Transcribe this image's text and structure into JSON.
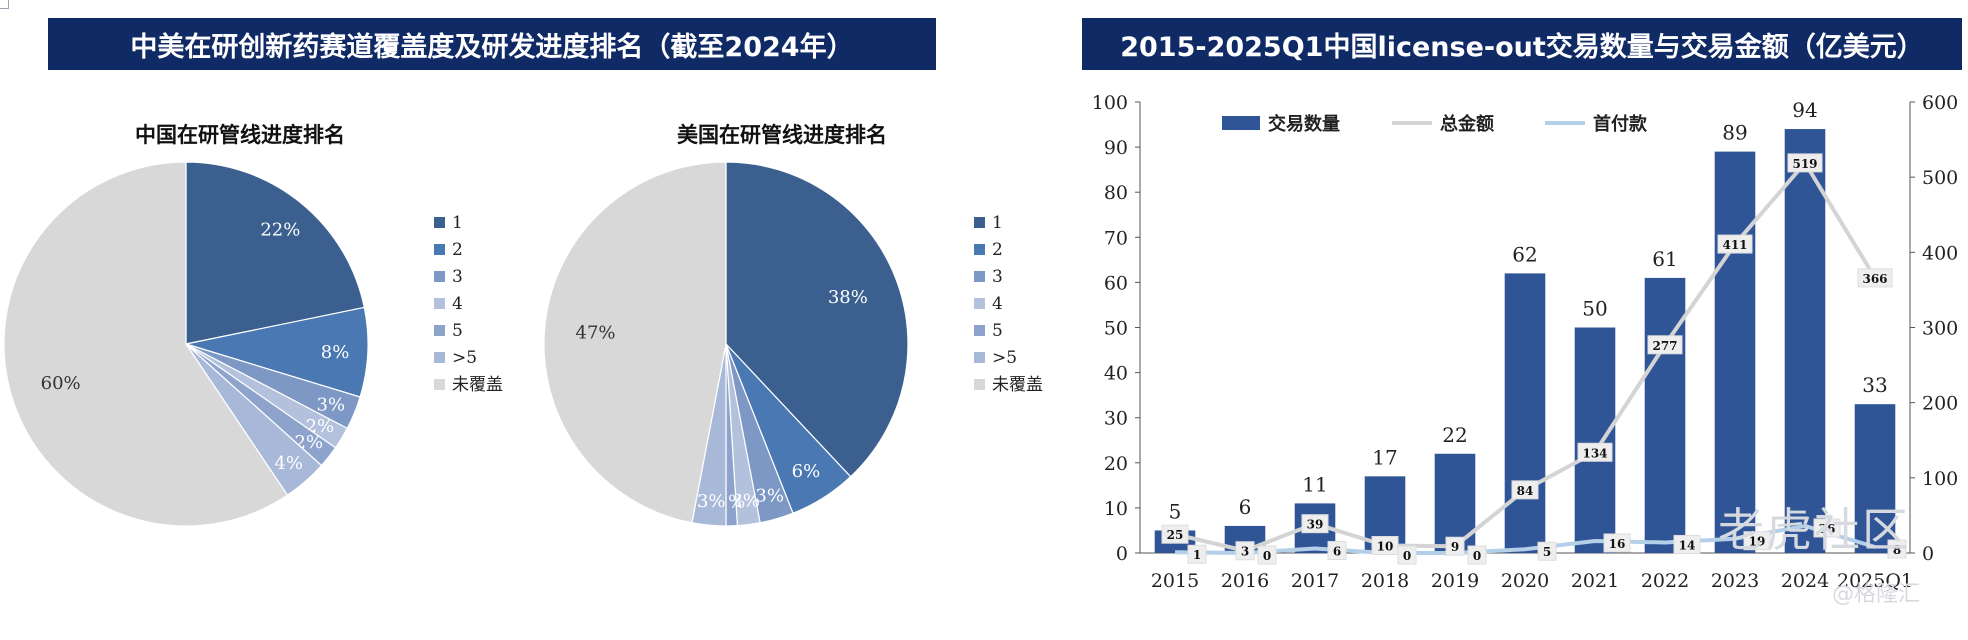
{
  "banners": {
    "left": "中美在研创新药赛道覆盖度及研发进度排名（截至2024年）",
    "right": "2015-2025Q1中国license-out交易数量与交易金额（亿美元）"
  },
  "watermark": {
    "main": "老虎社区",
    "sub": "@格隆汇",
    "logo": "格隆汇"
  },
  "colors": {
    "rank1": "#3b6090",
    "rank2": "#4a78b2",
    "rank3": "#7d98c4",
    "rank4": "#b3c1dc",
    "rank5": "#8ea3cc",
    "rank_gt5": "#a8b8d8",
    "uncovered": "#d8d8d8",
    "bar": "#2f5597",
    "total_line": "#d4d4d4",
    "upfront_line": "#b4cfe8",
    "banner": "#102a66"
  },
  "chart_data": [
    {
      "type": "pie",
      "title": "中国在研管线进度排名",
      "legend": [
        "1",
        "2",
        "3",
        "4",
        "5",
        ">5",
        "未覆盖"
      ],
      "legend_placement": "right",
      "values": [
        22,
        8,
        3,
        2,
        2,
        4,
        60
      ],
      "data_labels": [
        "22%",
        "8%",
        "3%",
        "2%",
        "2%",
        "4%",
        "60%"
      ]
    },
    {
      "type": "pie",
      "title": "美国在研管线进度排名",
      "legend": [
        "1",
        "2",
        "3",
        "4",
        "5",
        ">5",
        "未覆盖"
      ],
      "legend_placement": "right",
      "values": [
        38,
        6,
        3,
        2,
        1,
        3,
        47
      ],
      "data_labels": [
        "38%",
        "6%",
        "3%",
        "2%",
        "1%",
        "3%",
        "47%"
      ]
    },
    {
      "type": "bar",
      "categories": [
        "2015",
        "2016",
        "2017",
        "2018",
        "2019",
        "2020",
        "2021",
        "2022",
        "2023",
        "2024",
        "2025Q1"
      ],
      "series": [
        {
          "name": "交易数量",
          "kind": "bar",
          "axis": "left",
          "values": [
            5,
            6,
            11,
            17,
            22,
            62,
            50,
            61,
            89,
            94,
            33
          ]
        },
        {
          "name": "总金额",
          "kind": "line",
          "axis": "right",
          "values": [
            25,
            3,
            39,
            10,
            9,
            84,
            134,
            277,
            411,
            519,
            366
          ]
        },
        {
          "name": "首付款",
          "kind": "line",
          "axis": "right",
          "values": [
            1,
            0,
            6,
            0,
            0,
            5,
            16,
            14,
            19,
            36,
            8
          ]
        }
      ],
      "y_left_ticks": [
        "0",
        "10",
        "20",
        "30",
        "40",
        "50",
        "60",
        "70",
        "80",
        "90",
        "100"
      ],
      "y_right_ticks": [
        "0",
        "100",
        "200",
        "300",
        "400",
        "500",
        "600"
      ],
      "ylim_left": [
        0,
        100
      ],
      "ylim_right": [
        0,
        600
      ],
      "legend_placement": "top-left",
      "grid": false
    }
  ]
}
